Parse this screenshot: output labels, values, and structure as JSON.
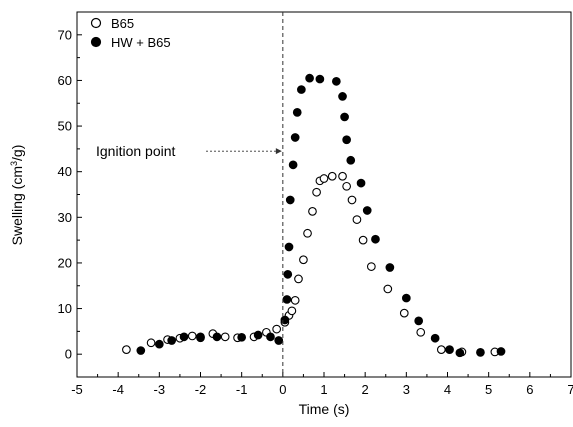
{
  "chart_data": {
    "type": "scatter",
    "xlabel": "Time (s)",
    "ylabel_main": "Swelling (cm",
    "ylabel_sup": "3",
    "ylabel_tail": "/g)",
    "xlim": [
      -5,
      7
    ],
    "ylim": [
      -5,
      75
    ],
    "xticks": [
      -5,
      -4,
      -3,
      -2,
      -1,
      0,
      1,
      2,
      3,
      4,
      5,
      6,
      7
    ],
    "yticks": [
      0,
      10,
      20,
      30,
      40,
      50,
      60,
      70
    ],
    "grid": false,
    "legend_position": "top-left",
    "annotation": {
      "text": "Ignition point",
      "x": 0,
      "y": 44.5
    },
    "vline_x": 0,
    "series": [
      {
        "name": "B65",
        "marker": "open-circle",
        "color": "#000000",
        "points": [
          [
            -3.8,
            1.0
          ],
          [
            -3.2,
            2.5
          ],
          [
            -2.8,
            3.2
          ],
          [
            -2.5,
            3.5
          ],
          [
            -2.2,
            4.0
          ],
          [
            -2.0,
            3.6
          ],
          [
            -1.7,
            4.5
          ],
          [
            -1.4,
            3.8
          ],
          [
            -1.1,
            3.6
          ],
          [
            -0.7,
            3.8
          ],
          [
            -0.4,
            4.8
          ],
          [
            -0.15,
            5.5
          ],
          [
            0.05,
            7.0
          ],
          [
            0.15,
            8.5
          ],
          [
            0.22,
            9.5
          ],
          [
            0.3,
            11.8
          ],
          [
            0.38,
            16.5
          ],
          [
            0.5,
            20.7
          ],
          [
            0.6,
            26.5
          ],
          [
            0.72,
            31.3
          ],
          [
            0.82,
            35.5
          ],
          [
            0.9,
            38.0
          ],
          [
            1.0,
            38.5
          ],
          [
            1.2,
            39.0
          ],
          [
            1.45,
            39.0
          ],
          [
            1.55,
            36.8
          ],
          [
            1.68,
            33.8
          ],
          [
            1.8,
            29.5
          ],
          [
            1.95,
            25.0
          ],
          [
            2.15,
            19.2
          ],
          [
            2.55,
            14.3
          ],
          [
            2.95,
            9.0
          ],
          [
            3.35,
            4.8
          ],
          [
            3.85,
            1.0
          ],
          [
            4.35,
            0.5
          ],
          [
            5.15,
            0.5
          ]
        ]
      },
      {
        "name": "HW + B65",
        "marker": "filled-circle",
        "color": "#000000",
        "points": [
          [
            -3.45,
            0.8
          ],
          [
            -3.0,
            2.2
          ],
          [
            -2.7,
            3.0
          ],
          [
            -2.4,
            3.8
          ],
          [
            -2.0,
            3.8
          ],
          [
            -1.6,
            3.8
          ],
          [
            -1.0,
            3.7
          ],
          [
            -0.6,
            4.2
          ],
          [
            -0.3,
            3.8
          ],
          [
            -0.1,
            3.0
          ],
          [
            0.05,
            7.5
          ],
          [
            0.1,
            12.0
          ],
          [
            0.12,
            17.5
          ],
          [
            0.15,
            23.5
          ],
          [
            0.18,
            33.8
          ],
          [
            0.25,
            41.5
          ],
          [
            0.3,
            47.5
          ],
          [
            0.35,
            53.0
          ],
          [
            0.45,
            58.0
          ],
          [
            0.65,
            60.5
          ],
          [
            0.9,
            60.3
          ],
          [
            1.3,
            59.8
          ],
          [
            1.45,
            56.5
          ],
          [
            1.5,
            52.0
          ],
          [
            1.55,
            47.0
          ],
          [
            1.65,
            42.5
          ],
          [
            1.9,
            37.5
          ],
          [
            2.05,
            31.5
          ],
          [
            2.25,
            25.2
          ],
          [
            2.6,
            19.0
          ],
          [
            3.0,
            12.3
          ],
          [
            3.3,
            7.3
          ],
          [
            3.7,
            3.5
          ],
          [
            4.05,
            1.0
          ],
          [
            4.3,
            0.3
          ],
          [
            4.8,
            0.4
          ],
          [
            5.3,
            0.6
          ]
        ]
      }
    ]
  }
}
